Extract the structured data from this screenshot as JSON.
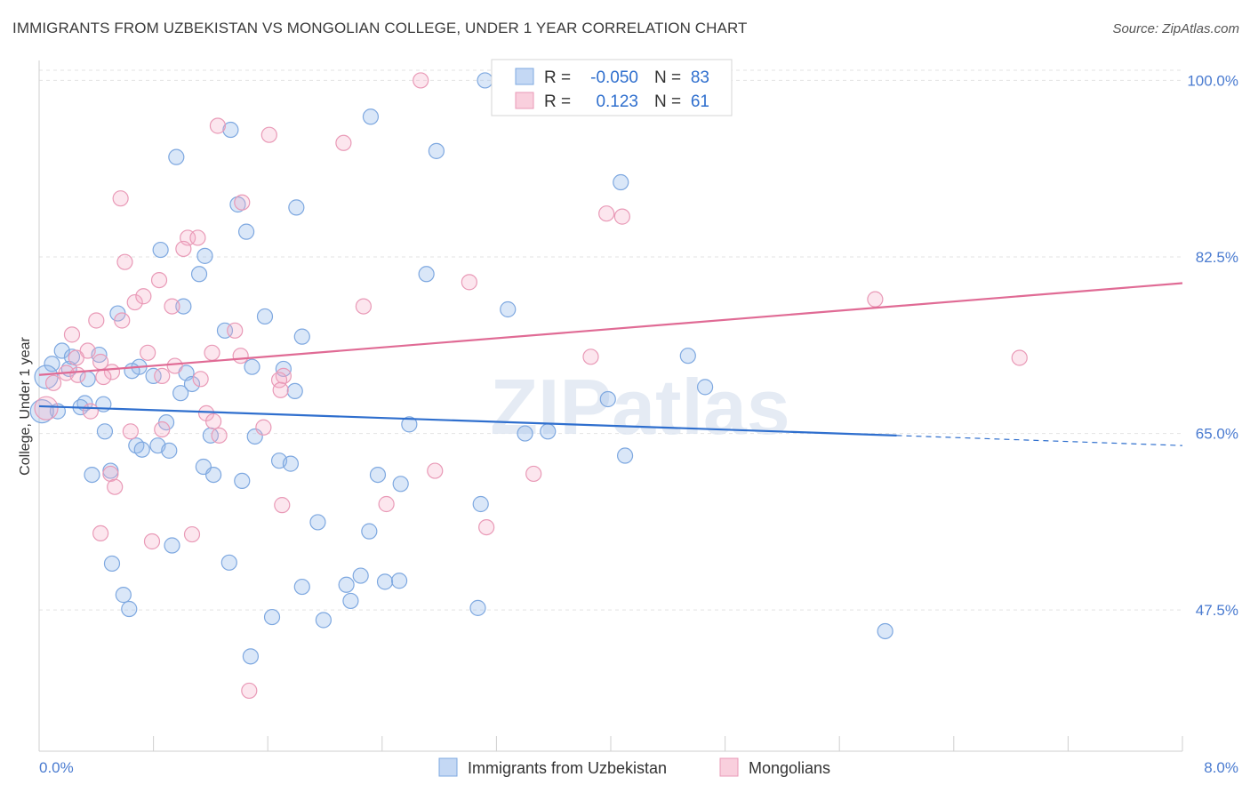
{
  "chart_data": {
    "type": "scatter",
    "title": "IMMIGRANTS FROM UZBEKISTAN VS MONGOLIAN COLLEGE, UNDER 1 YEAR CORRELATION CHART",
    "source": "Source: ZipAtlas.com",
    "xlabel": "",
    "ylabel": "College, Under 1 year",
    "x_tick_labels": [
      "0.0%",
      "8.0%"
    ],
    "y_tick_labels": [
      "100.0%",
      "82.5%",
      "65.0%",
      "47.5%"
    ],
    "y_ticks": [
      100.0,
      82.5,
      65.0,
      47.5
    ],
    "xlim": [
      0,
      8
    ],
    "ylim": [
      33.5,
      101.8
    ],
    "grid": "horizontal dashed",
    "legend_position": "bottom",
    "watermark": "ZIPatlas",
    "colors": {
      "blue": "#6fa0e0",
      "blue_line": "#2f6fce",
      "pink": "#ec8fb0",
      "pink_line": "#e06b95",
      "axis_label": "#4a7bd0"
    },
    "stats": [
      {
        "r_label": "R =",
        "r_value": "-0.050",
        "n_label": "N =",
        "n_value": "83"
      },
      {
        "r_label": "R =",
        "r_value": "0.123",
        "n_label": "N =",
        "n_value": "61"
      }
    ],
    "series": [
      {
        "name": "Immigrants from Uzbekistan",
        "color": "#6fa0e0",
        "trend": {
          "x0": 0.0,
          "y0": 67.7,
          "x1": 6.0,
          "y1": 64.8,
          "x_dash_end": 8.0,
          "y_dash_end": 63.8
        },
        "points": [
          [
            3.12,
            100.0
          ],
          [
            2.32,
            96.4
          ],
          [
            1.34,
            95.1
          ],
          [
            0.96,
            92.4
          ],
          [
            2.78,
            93.0
          ],
          [
            4.07,
            89.9
          ],
          [
            1.39,
            87.7
          ],
          [
            1.8,
            87.4
          ],
          [
            1.45,
            85.0
          ],
          [
            0.85,
            83.2
          ],
          [
            1.16,
            82.6
          ],
          [
            1.12,
            80.8
          ],
          [
            2.71,
            80.8
          ],
          [
            3.28,
            77.3
          ],
          [
            0.55,
            76.9
          ],
          [
            1.01,
            77.6
          ],
          [
            1.58,
            76.6
          ],
          [
            1.3,
            75.2
          ],
          [
            1.84,
            74.6
          ],
          [
            4.54,
            72.7
          ],
          [
            0.16,
            73.2
          ],
          [
            0.21,
            71.4
          ],
          [
            0.42,
            72.8
          ],
          [
            0.09,
            71.9
          ],
          [
            0.7,
            71.6
          ],
          [
            0.65,
            71.2
          ],
          [
            0.8,
            70.7
          ],
          [
            1.03,
            71.0
          ],
          [
            1.49,
            71.6
          ],
          [
            0.34,
            70.4
          ],
          [
            0.05,
            70.6
          ],
          [
            1.07,
            69.9
          ],
          [
            1.79,
            69.2
          ],
          [
            0.99,
            69.0
          ],
          [
            4.66,
            69.6
          ],
          [
            3.98,
            68.4
          ],
          [
            0.32,
            68.0
          ],
          [
            0.13,
            67.2
          ],
          [
            0.29,
            67.6
          ],
          [
            0.45,
            67.9
          ],
          [
            0.02,
            67.2
          ],
          [
            0.89,
            66.1
          ],
          [
            2.59,
            65.9
          ],
          [
            0.46,
            65.2
          ],
          [
            1.2,
            64.8
          ],
          [
            3.56,
            65.2
          ],
          [
            0.68,
            63.8
          ],
          [
            0.83,
            63.8
          ],
          [
            0.72,
            63.4
          ],
          [
            0.91,
            63.3
          ],
          [
            4.1,
            62.8
          ],
          [
            1.68,
            62.3
          ],
          [
            1.76,
            62.0
          ],
          [
            1.15,
            61.7
          ],
          [
            0.5,
            61.3
          ],
          [
            0.37,
            60.9
          ],
          [
            1.22,
            60.9
          ],
          [
            2.37,
            60.9
          ],
          [
            1.42,
            60.3
          ],
          [
            2.53,
            60.0
          ],
          [
            3.09,
            58.0
          ],
          [
            1.95,
            56.2
          ],
          [
            2.31,
            55.3
          ],
          [
            0.51,
            52.1
          ],
          [
            1.33,
            52.2
          ],
          [
            2.25,
            50.9
          ],
          [
            2.42,
            50.3
          ],
          [
            2.52,
            50.4
          ],
          [
            2.15,
            50.0
          ],
          [
            1.84,
            49.8
          ],
          [
            0.59,
            49.0
          ],
          [
            2.18,
            48.4
          ],
          [
            0.63,
            47.6
          ],
          [
            3.07,
            47.7
          ],
          [
            1.63,
            46.8
          ],
          [
            1.99,
            46.5
          ],
          [
            5.92,
            45.4
          ],
          [
            1.48,
            42.9
          ],
          [
            0.93,
            53.9
          ],
          [
            1.51,
            64.7
          ],
          [
            3.4,
            65.0
          ],
          [
            1.71,
            71.4
          ],
          [
            0.23,
            72.6
          ]
        ]
      },
      {
        "name": "Mongolians",
        "color": "#ec8fb0",
        "trend": {
          "x0": 0.0,
          "y0": 70.8,
          "x1": 8.0,
          "y1": 79.9
        },
        "points": [
          [
            2.67,
            100.0
          ],
          [
            1.25,
            95.5
          ],
          [
            1.61,
            94.6
          ],
          [
            2.13,
            93.8
          ],
          [
            0.57,
            88.3
          ],
          [
            1.42,
            87.9
          ],
          [
            3.97,
            86.8
          ],
          [
            4.08,
            86.5
          ],
          [
            1.04,
            84.4
          ],
          [
            1.11,
            84.4
          ],
          [
            1.01,
            83.3
          ],
          [
            0.6,
            82.0
          ],
          [
            0.84,
            80.2
          ],
          [
            3.01,
            80.0
          ],
          [
            5.85,
            78.3
          ],
          [
            0.67,
            78.0
          ],
          [
            0.73,
            78.6
          ],
          [
            2.27,
            77.6
          ],
          [
            0.93,
            77.6
          ],
          [
            0.4,
            76.2
          ],
          [
            0.58,
            76.2
          ],
          [
            1.37,
            75.2
          ],
          [
            0.23,
            74.8
          ],
          [
            0.34,
            73.2
          ],
          [
            1.21,
            73.0
          ],
          [
            0.76,
            73.0
          ],
          [
            1.41,
            72.7
          ],
          [
            3.86,
            72.6
          ],
          [
            6.86,
            72.5
          ],
          [
            0.26,
            72.5
          ],
          [
            0.43,
            72.1
          ],
          [
            0.51,
            71.1
          ],
          [
            0.95,
            71.7
          ],
          [
            0.19,
            71.0
          ],
          [
            0.27,
            70.8
          ],
          [
            0.86,
            70.7
          ],
          [
            1.71,
            70.7
          ],
          [
            0.45,
            70.6
          ],
          [
            1.13,
            70.4
          ],
          [
            0.1,
            70.0
          ],
          [
            1.68,
            70.3
          ],
          [
            1.69,
            69.3
          ],
          [
            0.36,
            67.2
          ],
          [
            1.17,
            67.0
          ],
          [
            1.22,
            66.2
          ],
          [
            1.57,
            65.6
          ],
          [
            0.64,
            65.2
          ],
          [
            0.86,
            65.4
          ],
          [
            1.26,
            64.8
          ],
          [
            2.77,
            61.3
          ],
          [
            0.5,
            61.0
          ],
          [
            3.46,
            61.0
          ],
          [
            0.53,
            59.7
          ],
          [
            2.43,
            58.0
          ],
          [
            1.7,
            57.9
          ],
          [
            3.13,
            55.7
          ],
          [
            0.43,
            55.1
          ],
          [
            1.07,
            55.0
          ],
          [
            0.79,
            54.3
          ],
          [
            1.47,
            39.5
          ],
          [
            0.05,
            67.5
          ]
        ]
      }
    ]
  }
}
